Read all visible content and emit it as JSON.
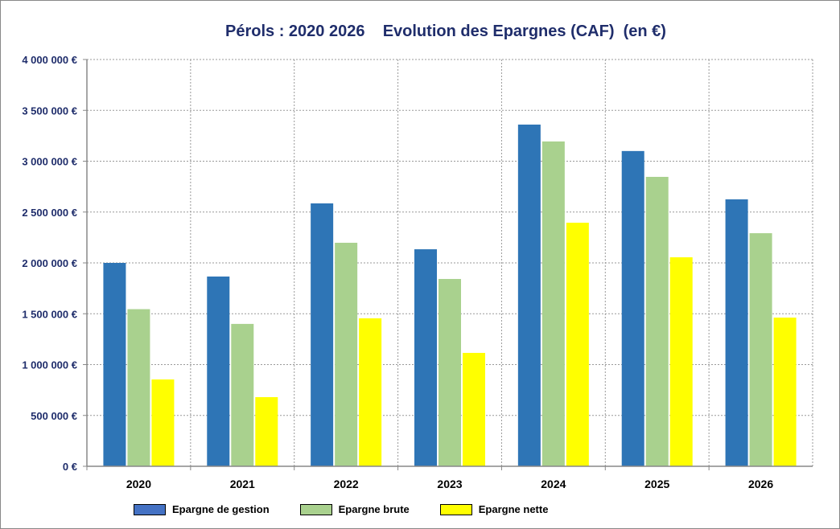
{
  "chart_data": {
    "type": "bar",
    "title": "Pérols : 2020 2026    Evolution des Epargnes (CAF)  (en €)",
    "xlabel": "",
    "ylabel": "",
    "ylim": [
      0,
      4000000
    ],
    "yticks": [
      0,
      500000,
      1000000,
      1500000,
      2000000,
      2500000,
      3000000,
      3500000,
      4000000
    ],
    "ytick_labels": [
      "0 €",
      "500 000 €",
      "1 000 000 €",
      "1 500 000 €",
      "2 000 000 €",
      "2 500 000 €",
      "3 000 000 €",
      "3 500 000 €",
      "4 000 000 €"
    ],
    "categories": [
      "2020",
      "2021",
      "2022",
      "2023",
      "2024",
      "2025",
      "2026"
    ],
    "grid": true,
    "legend_position": "bottom",
    "series": [
      {
        "name": "Epargne de gestion",
        "color": "#2e75b6",
        "legend_color": "#4472c4",
        "values": [
          2000000,
          1866000,
          2585000,
          2134000,
          3360000,
          3100000,
          2625000
        ]
      },
      {
        "name": "Epargne brute",
        "color": "#a9d18e",
        "legend_color": "#a9d18e",
        "values": [
          1545000,
          1400000,
          2198000,
          1842000,
          3194000,
          2846000,
          2292000
        ]
      },
      {
        "name": "Epargne nette",
        "color": "#ffff00",
        "legend_color": "#ffff00",
        "values": [
          854000,
          680000,
          1455000,
          1115000,
          2395000,
          2055000,
          1462000
        ]
      }
    ]
  }
}
